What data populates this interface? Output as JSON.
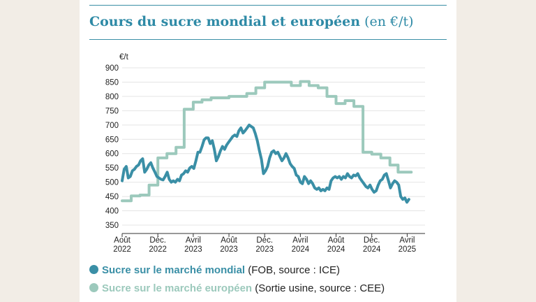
{
  "colors": {
    "world": "#3a8fa6",
    "europe": "#9cc9bc",
    "accent": "#2e8aa6"
  },
  "header": {
    "title_bold": "Cours du sucre mondial et européen",
    "title_unit": "(en €/t)"
  },
  "chart_data": {
    "type": "line",
    "title": "Cours du sucre mondial et européen (en €/t)",
    "ylabel": "€/t",
    "ylim": [
      350,
      900
    ],
    "yticks": [
      350,
      400,
      450,
      500,
      550,
      600,
      650,
      700,
      750,
      800,
      850,
      900
    ],
    "grid": true,
    "xlim": [
      "2022-08-01",
      "2025-06-01"
    ],
    "xticks": [
      {
        "date": "2022-08-01",
        "line1": "Août",
        "line2": "2022"
      },
      {
        "date": "2022-12-01",
        "line1": "Déc.",
        "line2": "2022"
      },
      {
        "date": "2023-04-01",
        "line1": "Avril",
        "line2": "2023"
      },
      {
        "date": "2023-08-01",
        "line1": "Août",
        "line2": "2023"
      },
      {
        "date": "2023-12-01",
        "line1": "Déc.",
        "line2": "2023"
      },
      {
        "date": "2024-04-01",
        "line1": "Avril",
        "line2": "2024"
      },
      {
        "date": "2024-08-01",
        "line1": "Août",
        "line2": "2024"
      },
      {
        "date": "2024-12-01",
        "line1": "Déc.",
        "line2": "2024"
      },
      {
        "date": "2025-04-01",
        "line1": "Avril",
        "line2": "2025"
      }
    ],
    "legend_position": "bottom",
    "series": [
      {
        "name": "Sucre sur le marché mondial",
        "note": "(FOB, source : ICE)",
        "color": "#3a8fa6",
        "points": [
          [
            "2022-08-01",
            505
          ],
          [
            "2022-08-08",
            545
          ],
          [
            "2022-08-15",
            555
          ],
          [
            "2022-08-22",
            515
          ],
          [
            "2022-08-29",
            520
          ],
          [
            "2022-09-05",
            540
          ],
          [
            "2022-09-12",
            545
          ],
          [
            "2022-09-19",
            555
          ],
          [
            "2022-09-26",
            560
          ],
          [
            "2022-10-03",
            575
          ],
          [
            "2022-10-10",
            582
          ],
          [
            "2022-10-17",
            535
          ],
          [
            "2022-10-24",
            545
          ],
          [
            "2022-10-31",
            560
          ],
          [
            "2022-11-07",
            568
          ],
          [
            "2022-11-14",
            550
          ],
          [
            "2022-11-21",
            535
          ],
          [
            "2022-11-28",
            520
          ],
          [
            "2022-12-05",
            515
          ],
          [
            "2022-12-12",
            510
          ],
          [
            "2022-12-19",
            508
          ],
          [
            "2022-12-26",
            520
          ],
          [
            "2023-01-02",
            535
          ],
          [
            "2023-01-09",
            510
          ],
          [
            "2023-01-16",
            500
          ],
          [
            "2023-01-23",
            505
          ],
          [
            "2023-01-30",
            500
          ],
          [
            "2023-02-06",
            510
          ],
          [
            "2023-02-13",
            505
          ],
          [
            "2023-02-20",
            525
          ],
          [
            "2023-02-27",
            530
          ],
          [
            "2023-03-06",
            540
          ],
          [
            "2023-03-13",
            535
          ],
          [
            "2023-03-20",
            550
          ],
          [
            "2023-03-27",
            555
          ],
          [
            "2023-04-03",
            548
          ],
          [
            "2023-04-10",
            575
          ],
          [
            "2023-04-17",
            605
          ],
          [
            "2023-04-24",
            605
          ],
          [
            "2023-05-01",
            625
          ],
          [
            "2023-05-08",
            648
          ],
          [
            "2023-05-15",
            655
          ],
          [
            "2023-05-22",
            655
          ],
          [
            "2023-05-29",
            635
          ],
          [
            "2023-06-05",
            645
          ],
          [
            "2023-06-12",
            615
          ],
          [
            "2023-06-19",
            575
          ],
          [
            "2023-06-26",
            590
          ],
          [
            "2023-07-03",
            610
          ],
          [
            "2023-07-10",
            625
          ],
          [
            "2023-07-17",
            615
          ],
          [
            "2023-07-24",
            630
          ],
          [
            "2023-07-31",
            640
          ],
          [
            "2023-08-07",
            650
          ],
          [
            "2023-08-14",
            660
          ],
          [
            "2023-08-21",
            665
          ],
          [
            "2023-08-28",
            660
          ],
          [
            "2023-09-04",
            680
          ],
          [
            "2023-09-11",
            690
          ],
          [
            "2023-09-18",
            672
          ],
          [
            "2023-09-25",
            680
          ],
          [
            "2023-10-02",
            690
          ],
          [
            "2023-10-09",
            700
          ],
          [
            "2023-10-16",
            695
          ],
          [
            "2023-10-23",
            690
          ],
          [
            "2023-10-30",
            670
          ],
          [
            "2023-11-06",
            645
          ],
          [
            "2023-11-13",
            610
          ],
          [
            "2023-11-20",
            580
          ],
          [
            "2023-11-27",
            530
          ],
          [
            "2023-12-04",
            540
          ],
          [
            "2023-12-11",
            555
          ],
          [
            "2023-12-18",
            585
          ],
          [
            "2023-12-25",
            605
          ],
          [
            "2024-01-01",
            610
          ],
          [
            "2024-01-08",
            600
          ],
          [
            "2024-01-15",
            605
          ],
          [
            "2024-01-22",
            590
          ],
          [
            "2024-01-29",
            575
          ],
          [
            "2024-02-05",
            585
          ],
          [
            "2024-02-12",
            600
          ],
          [
            "2024-02-19",
            585
          ],
          [
            "2024-02-26",
            565
          ],
          [
            "2024-03-04",
            555
          ],
          [
            "2024-03-11",
            548
          ],
          [
            "2024-03-18",
            525
          ],
          [
            "2024-03-25",
            520
          ],
          [
            "2024-04-01",
            500
          ],
          [
            "2024-04-08",
            495
          ],
          [
            "2024-04-15",
            520
          ],
          [
            "2024-04-22",
            510
          ],
          [
            "2024-04-29",
            495
          ],
          [
            "2024-05-06",
            505
          ],
          [
            "2024-05-13",
            495
          ],
          [
            "2024-05-20",
            480
          ],
          [
            "2024-05-27",
            475
          ],
          [
            "2024-06-03",
            480
          ],
          [
            "2024-06-10",
            470
          ],
          [
            "2024-06-17",
            475
          ],
          [
            "2024-06-24",
            470
          ],
          [
            "2024-07-01",
            480
          ],
          [
            "2024-07-08",
            475
          ],
          [
            "2024-07-15",
            505
          ],
          [
            "2024-07-22",
            515
          ],
          [
            "2024-07-29",
            520
          ],
          [
            "2024-08-05",
            515
          ],
          [
            "2024-08-12",
            520
          ],
          [
            "2024-08-19",
            510
          ],
          [
            "2024-08-26",
            520
          ],
          [
            "2024-09-02",
            515
          ],
          [
            "2024-09-09",
            530
          ],
          [
            "2024-09-16",
            520
          ],
          [
            "2024-09-23",
            515
          ],
          [
            "2024-09-30",
            525
          ],
          [
            "2024-10-07",
            522
          ],
          [
            "2024-10-14",
            530
          ],
          [
            "2024-10-21",
            515
          ],
          [
            "2024-10-28",
            505
          ],
          [
            "2024-11-04",
            495
          ],
          [
            "2024-11-11",
            485
          ],
          [
            "2024-11-18",
            480
          ],
          [
            "2024-11-25",
            490
          ],
          [
            "2024-12-02",
            475
          ],
          [
            "2024-12-09",
            465
          ],
          [
            "2024-12-16",
            470
          ],
          [
            "2024-12-23",
            490
          ],
          [
            "2024-12-30",
            505
          ],
          [
            "2025-01-06",
            510
          ],
          [
            "2025-01-13",
            525
          ],
          [
            "2025-01-20",
            530
          ],
          [
            "2025-01-27",
            505
          ],
          [
            "2025-02-03",
            480
          ],
          [
            "2025-02-10",
            495
          ],
          [
            "2025-02-17",
            505
          ],
          [
            "2025-02-24",
            500
          ],
          [
            "2025-03-03",
            490
          ],
          [
            "2025-03-10",
            450
          ],
          [
            "2025-03-17",
            440
          ],
          [
            "2025-03-24",
            445
          ],
          [
            "2025-03-31",
            430
          ],
          [
            "2025-04-07",
            440
          ]
        ]
      },
      {
        "name": "Sucre sur le marché européen",
        "note": "(Sortie usine, source : CEE)",
        "color": "#9cc9bc",
        "points": [
          [
            "2022-08-01",
            435
          ],
          [
            "2022-09-01",
            435
          ],
          [
            "2022-09-01",
            452
          ],
          [
            "2022-10-01",
            452
          ],
          [
            "2022-10-01",
            455
          ],
          [
            "2022-11-01",
            455
          ],
          [
            "2022-11-01",
            490
          ],
          [
            "2022-12-01",
            490
          ],
          [
            "2022-12-01",
            585
          ],
          [
            "2023-01-01",
            585
          ],
          [
            "2023-01-01",
            600
          ],
          [
            "2023-02-01",
            600
          ],
          [
            "2023-02-01",
            622
          ],
          [
            "2023-03-01",
            622
          ],
          [
            "2023-03-01",
            755
          ],
          [
            "2023-04-01",
            755
          ],
          [
            "2023-04-01",
            780
          ],
          [
            "2023-05-01",
            780
          ],
          [
            "2023-05-01",
            788
          ],
          [
            "2023-06-01",
            788
          ],
          [
            "2023-06-01",
            795
          ],
          [
            "2023-08-01",
            795
          ],
          [
            "2023-08-01",
            800
          ],
          [
            "2023-10-01",
            800
          ],
          [
            "2023-10-01",
            810
          ],
          [
            "2023-11-01",
            810
          ],
          [
            "2023-11-01",
            830
          ],
          [
            "2023-12-01",
            830
          ],
          [
            "2023-12-01",
            850
          ],
          [
            "2024-03-01",
            850
          ],
          [
            "2024-03-01",
            838
          ],
          [
            "2024-04-01",
            838
          ],
          [
            "2024-04-01",
            852
          ],
          [
            "2024-05-01",
            852
          ],
          [
            "2024-05-01",
            838
          ],
          [
            "2024-06-01",
            838
          ],
          [
            "2024-06-01",
            830
          ],
          [
            "2024-07-01",
            830
          ],
          [
            "2024-07-01",
            800
          ],
          [
            "2024-08-01",
            800
          ],
          [
            "2024-08-01",
            775
          ],
          [
            "2024-09-01",
            775
          ],
          [
            "2024-09-01",
            785
          ],
          [
            "2024-10-01",
            785
          ],
          [
            "2024-10-01",
            765
          ],
          [
            "2024-11-01",
            765
          ],
          [
            "2024-11-01",
            605
          ],
          [
            "2024-12-01",
            605
          ],
          [
            "2024-12-01",
            598
          ],
          [
            "2025-01-01",
            598
          ],
          [
            "2025-01-01",
            585
          ],
          [
            "2025-02-01",
            585
          ],
          [
            "2025-02-01",
            560
          ],
          [
            "2025-03-01",
            560
          ],
          [
            "2025-03-01",
            535
          ],
          [
            "2025-04-15",
            535
          ]
        ]
      }
    ]
  }
}
